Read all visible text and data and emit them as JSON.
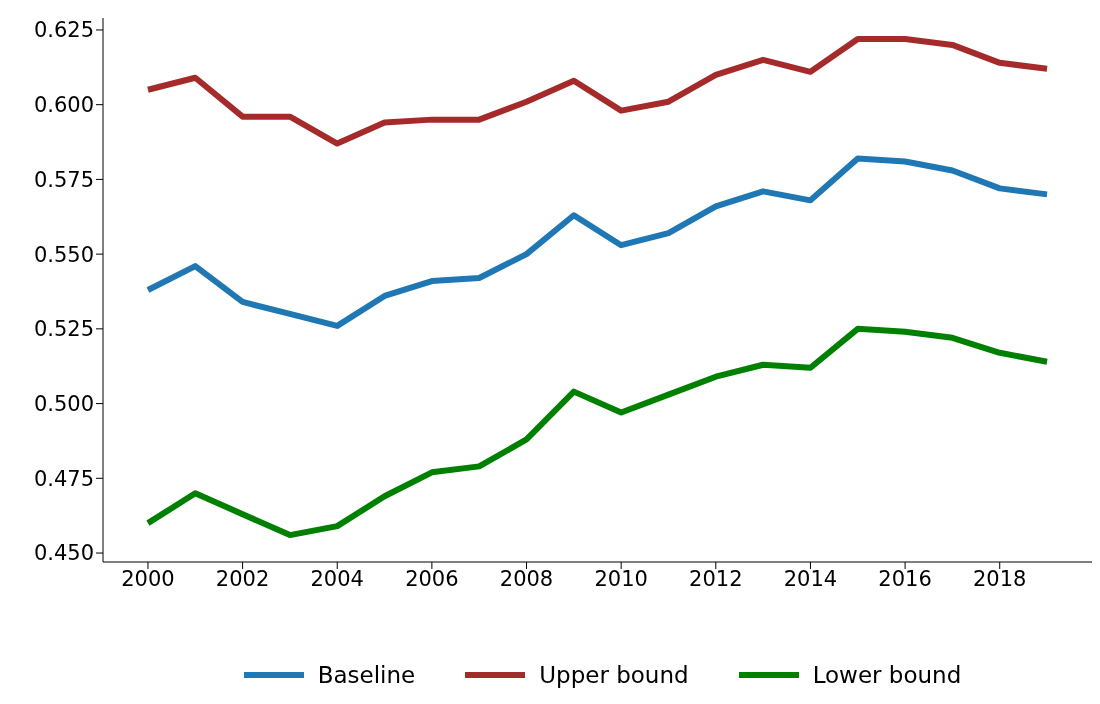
{
  "chart_data": {
    "type": "line",
    "x": [
      2000,
      2001,
      2002,
      2003,
      2004,
      2005,
      2006,
      2007,
      2008,
      2009,
      2010,
      2011,
      2012,
      2013,
      2014,
      2015,
      2016,
      2017,
      2018,
      2019
    ],
    "series": [
      {
        "name": "Baseline",
        "color": "#1f77b4",
        "values": [
          0.538,
          0.546,
          0.534,
          0.53,
          0.526,
          0.536,
          0.541,
          0.542,
          0.55,
          0.563,
          0.553,
          0.557,
          0.566,
          0.571,
          0.568,
          0.582,
          0.581,
          0.578,
          0.572,
          0.57
        ]
      },
      {
        "name": "Upper bound",
        "color": "#a52a2a",
        "values": [
          0.605,
          0.609,
          0.596,
          0.596,
          0.587,
          0.594,
          0.595,
          0.595,
          0.601,
          0.608,
          0.598,
          0.601,
          0.61,
          0.615,
          0.611,
          0.622,
          0.622,
          0.62,
          0.614,
          0.612
        ]
      },
      {
        "name": "Lower bound",
        "color": "#008000",
        "values": [
          0.46,
          0.47,
          0.463,
          0.456,
          0.459,
          0.469,
          0.477,
          0.479,
          0.488,
          0.504,
          0.497,
          0.503,
          0.509,
          0.513,
          0.512,
          0.525,
          0.524,
          0.522,
          0.517,
          0.514
        ]
      }
    ],
    "xlim": [
      1999.05,
      2019.95
    ],
    "ylim": [
      0.447,
      0.629
    ],
    "xticks": [
      2000,
      2002,
      2004,
      2006,
      2008,
      2010,
      2012,
      2014,
      2016,
      2018
    ],
    "yticks": [
      {
        "value": 0.45,
        "label": "0.450"
      },
      {
        "value": 0.475,
        "label": "0.475"
      },
      {
        "value": 0.5,
        "label": "0.500"
      },
      {
        "value": 0.525,
        "label": "0.525"
      },
      {
        "value": 0.55,
        "label": "0.550"
      },
      {
        "value": 0.575,
        "label": "0.575"
      },
      {
        "value": 0.6,
        "label": "0.600"
      },
      {
        "value": 0.625,
        "label": "0.625"
      }
    ],
    "grid": false,
    "legend": "bottom",
    "marker": "none",
    "line_style": "solid"
  }
}
